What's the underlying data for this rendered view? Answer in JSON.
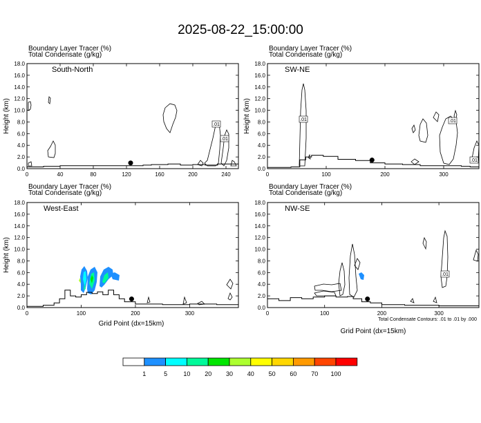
{
  "figure": {
    "title": "2025-08-22_15:00:00",
    "contour_note": "Total Condensate Contours: .01 to .01 by .000"
  },
  "colorbar": {
    "labels": [
      "1",
      "5",
      "10",
      "20",
      "30",
      "40",
      "50",
      "60",
      "70",
      "100"
    ],
    "colors": [
      "#ffffff",
      "#1e90ff",
      "#00ffff",
      "#00fa9a",
      "#00e600",
      "#adff2f",
      "#ffff00",
      "#ffd700",
      "#ff9a00",
      "#ff4500",
      "#ff0000"
    ]
  },
  "chart_data": [
    {
      "type": "contour",
      "panel_label": "South-North",
      "title_line1": "Boundary Layer Tracer   (%)",
      "title_line2": "Total Condensate   (g/kg)",
      "ylabel": "Height (km)",
      "xlabel": "",
      "xlim": [
        0,
        255
      ],
      "ylim": [
        0,
        18
      ],
      "xticks": [
        "0",
        "40",
        "80",
        "120",
        "160",
        "200",
        "240"
      ],
      "xtick_values": [
        0,
        40,
        80,
        120,
        160,
        200,
        240
      ],
      "yticks": [
        "0.0",
        "2.0",
        "4.0",
        "6.0",
        "8.0",
        "10.0",
        "12.0",
        "14.0",
        "16.0",
        "18.0"
      ],
      "contour_labels": [
        ".01",
        ".01"
      ],
      "terrain": [
        [
          0,
          0.3
        ],
        [
          20,
          0.4
        ],
        [
          40,
          0.5
        ],
        [
          80,
          0.5
        ],
        [
          110,
          0.5
        ],
        [
          130,
          0.5
        ],
        [
          140,
          0.6
        ],
        [
          150,
          0.7
        ],
        [
          170,
          0.8
        ],
        [
          185,
          0.6
        ],
        [
          200,
          0.7
        ],
        [
          215,
          0.6
        ],
        [
          230,
          0.8
        ],
        [
          245,
          0.8
        ],
        [
          255,
          0.9
        ]
      ],
      "marker_x": 125
    },
    {
      "type": "contour",
      "panel_label": "SW-NE",
      "title_line1": "Boundary Layer Tracer   (%)",
      "title_line2": "Total Condensate   (g/kg)",
      "ylabel": "Height (km)",
      "xlabel": "",
      "xlim": [
        0,
        360
      ],
      "ylim": [
        0,
        18
      ],
      "xticks": [
        "0",
        "100",
        "200",
        "300"
      ],
      "xtick_values": [
        0,
        100,
        200,
        300
      ],
      "yticks": [
        "0.0",
        "2.0",
        "4.0",
        "6.0",
        "8.0",
        "10.0",
        "12.0",
        "14.0",
        "16.0",
        "18.0"
      ],
      "contour_labels": [
        ".01",
        ".01",
        ".01"
      ],
      "terrain": [
        [
          0,
          0.2
        ],
        [
          20,
          0.2
        ],
        [
          40,
          0.3
        ],
        [
          55,
          1.5
        ],
        [
          65,
          2.0
        ],
        [
          75,
          2.3
        ],
        [
          95,
          2.1
        ],
        [
          120,
          1.6
        ],
        [
          150,
          1.4
        ],
        [
          175,
          1.0
        ],
        [
          200,
          0.8
        ],
        [
          230,
          0.7
        ],
        [
          260,
          0.5
        ],
        [
          300,
          0.5
        ],
        [
          330,
          0.4
        ],
        [
          345,
          0.3
        ],
        [
          360,
          0.3
        ]
      ],
      "marker_x": 178
    },
    {
      "type": "contour",
      "panel_label": "West-East",
      "title_line1": "Boundary Layer Tracer   (%)",
      "title_line2": "Total Condensate   (g/kg)",
      "ylabel": "Height (km)",
      "xlabel": "Grid Point (dx=15km)",
      "xlim": [
        0,
        390
      ],
      "ylim": [
        0,
        18
      ],
      "xticks": [
        "0",
        "100",
        "200",
        "300"
      ],
      "xtick_values": [
        0,
        100,
        200,
        300
      ],
      "yticks": [
        "0.0",
        "2.0",
        "4.0",
        "6.0",
        "8.0",
        "10.0",
        "12.0",
        "14.0",
        "16.0",
        "18.0"
      ],
      "contour_labels": [],
      "terrain": [
        [
          0,
          0.2
        ],
        [
          30,
          0.4
        ],
        [
          50,
          0.8
        ],
        [
          60,
          1.5
        ],
        [
          70,
          3.0
        ],
        [
          80,
          2.0
        ],
        [
          90,
          1.8
        ],
        [
          100,
          2.2
        ],
        [
          110,
          2.6
        ],
        [
          120,
          2.4
        ],
        [
          130,
          2.7
        ],
        [
          140,
          2.2
        ],
        [
          150,
          3.0
        ],
        [
          160,
          2.2
        ],
        [
          170,
          1.5
        ],
        [
          180,
          1.0
        ],
        [
          200,
          0.6
        ],
        [
          250,
          0.5
        ],
        [
          300,
          0.6
        ],
        [
          350,
          0.5
        ],
        [
          390,
          0.5
        ]
      ],
      "marker_x": 193
    },
    {
      "type": "contour",
      "panel_label": "NW-SE",
      "title_line1": "Boundary Layer Tracer   (%)",
      "title_line2": "Total Condensate   (g/kg)",
      "ylabel": "",
      "xlabel": "Grid Point (dx=15km)",
      "xlim": [
        0,
        370
      ],
      "ylim": [
        0,
        18
      ],
      "xticks": [
        "0",
        "100",
        "200",
        "300"
      ],
      "xtick_values": [
        0,
        100,
        200,
        300
      ],
      "yticks": [
        "0.0",
        "2.0",
        "4.0",
        "6.0",
        "8.0",
        "10.0",
        "12.0",
        "14.0",
        "16.0",
        "18.0"
      ],
      "contour_labels": [
        ".01"
      ],
      "terrain": [
        [
          0,
          1.5
        ],
        [
          20,
          1.2
        ],
        [
          40,
          1.7
        ],
        [
          60,
          1.5
        ],
        [
          80,
          1.8
        ],
        [
          100,
          2.0
        ],
        [
          120,
          1.8
        ],
        [
          140,
          1.9
        ],
        [
          150,
          1.5
        ],
        [
          165,
          1.0
        ],
        [
          180,
          0.8
        ],
        [
          200,
          0.5
        ],
        [
          240,
          0.4
        ],
        [
          300,
          0.3
        ],
        [
          340,
          0.3
        ],
        [
          370,
          0.3
        ]
      ],
      "marker_x": 175
    }
  ]
}
